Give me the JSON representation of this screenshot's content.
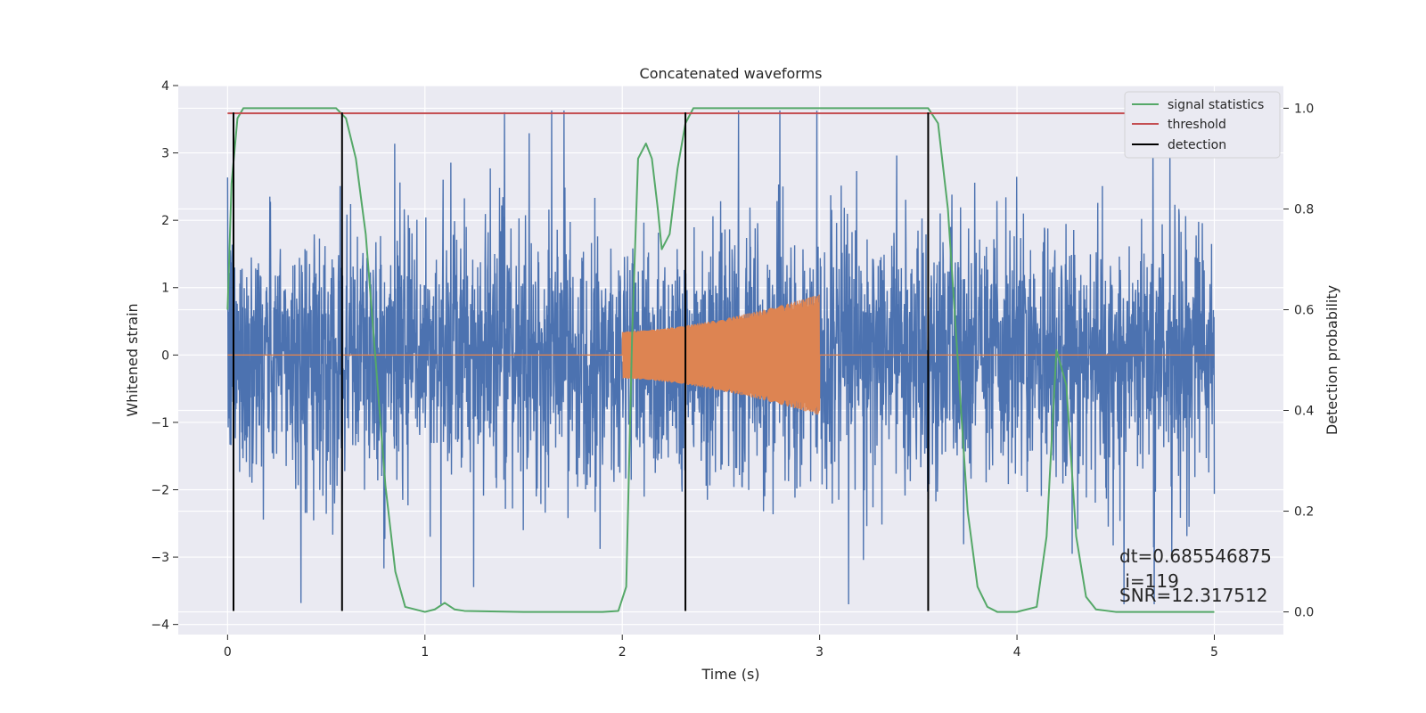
{
  "chart_data": {
    "type": "line",
    "title": "Concatenated waveforms",
    "xlabel": "Time (s)",
    "ylabel": "Whitened strain",
    "y2label": "Detection probability",
    "xlim": [
      -0.25,
      5.35
    ],
    "ylim": [
      -4.15,
      4.0
    ],
    "y2lim": [
      -0.045,
      1.045
    ],
    "xticks": [
      0,
      1,
      2,
      3,
      4,
      5
    ],
    "yticks": [
      -4,
      -3,
      -2,
      -1,
      0,
      1,
      2,
      3,
      4
    ],
    "y2ticks": [
      0.0,
      0.2,
      0.4,
      0.6,
      0.8,
      1.0
    ],
    "grid": true,
    "legend_position": "top-right",
    "colors": {
      "noise": "#4c72b0",
      "waveform": "#dd8452",
      "signal_statistics": "#55a868",
      "threshold": "#c44e52",
      "detection": "#000000",
      "background": "#eaeaf2"
    },
    "noise_series": {
      "x_range": [
        0,
        5
      ],
      "typical_envelope": [
        -1.5,
        1.5
      ],
      "peak_max": 3.63,
      "peak_min": -3.7
    },
    "waveform_series": {
      "x_range": [
        2.0,
        3.0
      ],
      "amplitude_start": 0.35,
      "amplitude_end": 0.9
    },
    "series": [
      {
        "name": "signal statistics",
        "axis": "right",
        "x": [
          0.0,
          0.02,
          0.05,
          0.08,
          0.55,
          0.6,
          0.65,
          0.7,
          0.75,
          0.8,
          0.85,
          0.9,
          1.0,
          1.05,
          1.1,
          1.15,
          1.2,
          1.5,
          1.9,
          1.98,
          2.02,
          2.05,
          2.08,
          2.12,
          2.15,
          2.18,
          2.2,
          2.24,
          2.28,
          2.32,
          2.36,
          2.45,
          2.6,
          3.0,
          3.55,
          3.6,
          3.65,
          3.7,
          3.75,
          3.8,
          3.85,
          3.9,
          4.0,
          4.1,
          4.15,
          4.2,
          4.25,
          4.3,
          4.35,
          4.4,
          4.5,
          5.0
        ],
        "y": [
          0.6,
          0.85,
          0.98,
          1.0,
          1.0,
          0.98,
          0.9,
          0.75,
          0.5,
          0.25,
          0.08,
          0.01,
          0.0,
          0.005,
          0.018,
          0.005,
          0.002,
          0.0,
          0.0,
          0.002,
          0.05,
          0.55,
          0.9,
          0.93,
          0.9,
          0.8,
          0.72,
          0.75,
          0.88,
          0.97,
          1.0,
          1.0,
          1.0,
          1.0,
          1.0,
          0.97,
          0.8,
          0.5,
          0.2,
          0.05,
          0.01,
          0.0,
          0.0,
          0.01,
          0.15,
          0.52,
          0.45,
          0.15,
          0.03,
          0.005,
          0.0,
          0.0
        ]
      },
      {
        "name": "threshold",
        "axis": "right",
        "x": [
          0,
          5
        ],
        "y": [
          0.99,
          0.99
        ]
      },
      {
        "name": "detection",
        "axis": "left",
        "x": [
          0.03,
          0.58,
          2.32,
          3.55
        ],
        "y_range": [
          -3.8,
          3.6
        ]
      }
    ],
    "annotations": [
      "dt=0.685546875",
      " i=119",
      "SNR=12.317512"
    ]
  }
}
